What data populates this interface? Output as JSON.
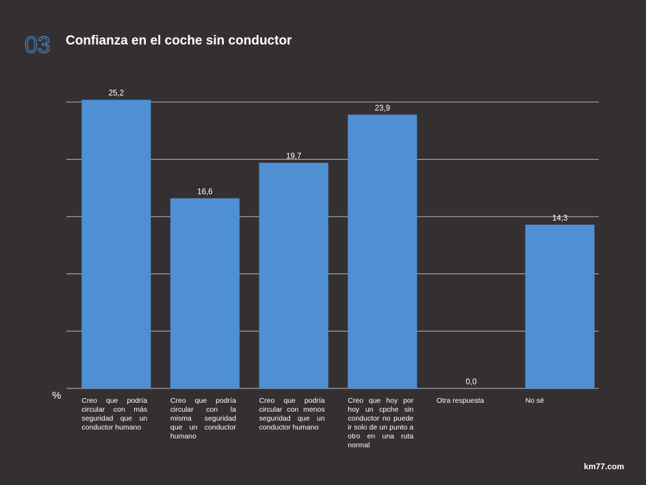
{
  "section_number": "03",
  "footer": "km77.com",
  "chart_data": {
    "type": "bar",
    "title": "Confianza en el coche sin conductor",
    "y_label": "%",
    "categories": [
      "Creo que podría circular con más seguridad que un conductor humano",
      "Creo que podría circular con la misma seguridad que un conductor humano",
      "Creo que podría circular con menos seguridad que un conductor humano",
      "Creo que hoy por hoy un cpche sin conductor no puede ir solo de un punto a otro en una ruta normal",
      "Otra respuesta",
      "No sé"
    ],
    "values": [
      25.2,
      16.6,
      19.7,
      23.9,
      0.0,
      14.3
    ],
    "value_labels": [
      "25,2",
      "16,6",
      "19,7",
      "23,9",
      "0,0",
      "14,3"
    ],
    "color": "#4f8fd4",
    "ylim": [
      0,
      25.5
    ],
    "yticks": [
      0,
      5,
      10,
      15,
      20,
      25
    ],
    "grid": true
  }
}
